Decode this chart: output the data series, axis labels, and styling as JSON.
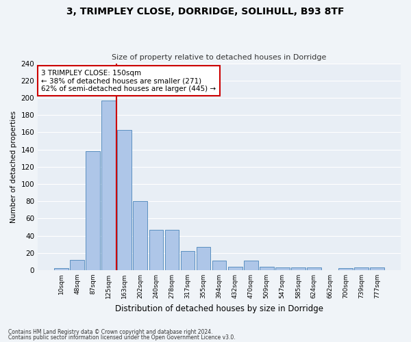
{
  "title1": "3, TRIMPLEY CLOSE, DORRIDGE, SOLIHULL, B93 8TF",
  "title2": "Size of property relative to detached houses in Dorridge",
  "xlabel": "Distribution of detached houses by size in Dorridge",
  "ylabel": "Number of detached properties",
  "bar_labels": [
    "10sqm",
    "48sqm",
    "87sqm",
    "125sqm",
    "163sqm",
    "202sqm",
    "240sqm",
    "278sqm",
    "317sqm",
    "355sqm",
    "394sqm",
    "432sqm",
    "470sqm",
    "509sqm",
    "547sqm",
    "585sqm",
    "624sqm",
    "662sqm",
    "700sqm",
    "739sqm",
    "777sqm"
  ],
  "bar_values": [
    2,
    12,
    138,
    197,
    163,
    80,
    47,
    47,
    22,
    27,
    11,
    4,
    11,
    4,
    3,
    3,
    3,
    0,
    2,
    3,
    3
  ],
  "bar_color": "#aec6e8",
  "bar_edgecolor": "#5a8fc0",
  "vline_color": "#cc0000",
  "annotation_text": "3 TRIMPLEY CLOSE: 150sqm\n← 38% of detached houses are smaller (271)\n62% of semi-detached houses are larger (445) →",
  "annotation_box_color": "#ffffff",
  "annotation_box_edgecolor": "#cc0000",
  "ylim": [
    0,
    240
  ],
  "yticks": [
    0,
    20,
    40,
    60,
    80,
    100,
    120,
    140,
    160,
    180,
    200,
    220,
    240
  ],
  "bg_color": "#e8eef5",
  "fig_bg_color": "#f0f4f8",
  "footer1": "Contains HM Land Registry data © Crown copyright and database right 2024.",
  "footer2": "Contains public sector information licensed under the Open Government Licence v3.0."
}
